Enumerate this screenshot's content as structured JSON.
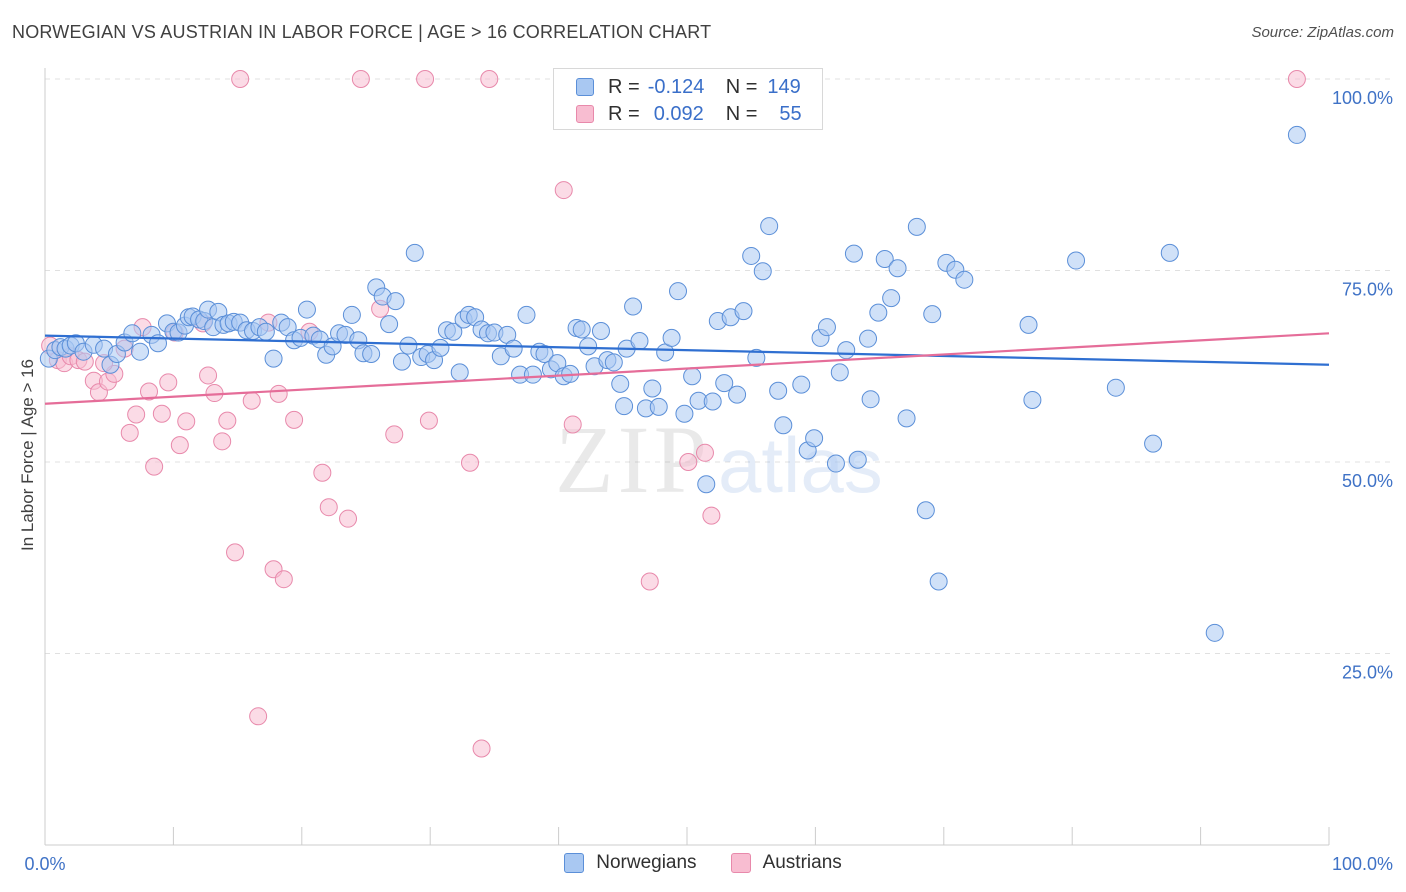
{
  "header": {
    "title": "NORWEGIAN VS AUSTRIAN IN LABOR FORCE | AGE > 16 CORRELATION CHART",
    "source": "Source: ZipAtlas.com"
  },
  "watermark": {
    "zip": "ZIP",
    "atlas": "atlas"
  },
  "legend_top": {
    "rows": [
      {
        "r_label": "R =",
        "r_value": "-0.124",
        "n_label": "N =",
        "n_value": "149"
      },
      {
        "r_label": "R =",
        "r_value": "0.092",
        "n_label": "N =",
        "n_value": "55"
      }
    ]
  },
  "colors": {
    "norwegian_fill": "#a9c8f2",
    "norwegian_stroke": "#5b8fd8",
    "norwegian_line": "#2f6fd1",
    "austrian_fill": "#f8bdd1",
    "austrian_stroke": "#e889ab",
    "austrian_line": "#e56d99",
    "tick_label": "#3f72c6",
    "grid": "#e0e0e0"
  },
  "chart_data": {
    "type": "scatter",
    "title": "NORWEGIAN VS AUSTRIAN IN LABOR FORCE | AGE > 16 CORRELATION CHART",
    "xlabel": "",
    "ylabel": "In Labor Force | Age > 16",
    "xlim": [
      0,
      100
    ],
    "ylim": [
      0,
      100
    ],
    "x_tick_labels": [
      "0.0%",
      "100.0%"
    ],
    "y_ticks": [
      25,
      50,
      75,
      100
    ],
    "y_tick_labels": [
      "25.0%",
      "50.0%",
      "75.0%",
      "100.0%"
    ],
    "grid": true,
    "legend_placement": "bottom",
    "series": [
      {
        "name": "Norwegians",
        "trend": {
          "x": [
            0,
            100
          ],
          "y": [
            66.5,
            62.7
          ]
        },
        "points": [
          [
            0.3,
            63.5
          ],
          [
            0.8,
            64.6
          ],
          [
            1.2,
            65
          ],
          [
            1.6,
            64.8
          ],
          [
            2,
            65.2
          ],
          [
            2.4,
            65.5
          ],
          [
            3,
            64.4
          ],
          [
            3.8,
            65.3
          ],
          [
            4.6,
            64.8
          ],
          [
            5.1,
            62.7
          ],
          [
            5.6,
            64.1
          ],
          [
            6.2,
            65.6
          ],
          [
            6.8,
            66.8
          ],
          [
            7.4,
            64.4
          ],
          [
            8.3,
            66.6
          ],
          [
            8.8,
            65.5
          ],
          [
            9.5,
            68.1
          ],
          [
            10,
            67
          ],
          [
            10.4,
            66.9
          ],
          [
            10.9,
            67.8
          ],
          [
            11.2,
            68.9
          ],
          [
            11.5,
            69
          ],
          [
            12,
            68.6
          ],
          [
            12.4,
            68.4
          ],
          [
            12.7,
            69.9
          ],
          [
            13.1,
            67.6
          ],
          [
            13.5,
            69.6
          ],
          [
            13.9,
            67.9
          ],
          [
            14.3,
            68.1
          ],
          [
            14.7,
            68.3
          ],
          [
            15.2,
            68.2
          ],
          [
            15.7,
            67.2
          ],
          [
            16.2,
            67.1
          ],
          [
            16.7,
            67.6
          ],
          [
            17.2,
            67
          ],
          [
            17.8,
            63.5
          ],
          [
            18.4,
            68.2
          ],
          [
            18.9,
            67.6
          ],
          [
            19.4,
            65.9
          ],
          [
            19.9,
            66.2
          ],
          [
            20.4,
            69.9
          ],
          [
            20.9,
            66.5
          ],
          [
            21.4,
            66
          ],
          [
            21.9,
            64
          ],
          [
            22.4,
            65.1
          ],
          [
            22.9,
            66.8
          ],
          [
            23.4,
            66.6
          ],
          [
            23.9,
            69.2
          ],
          [
            24.4,
            65.9
          ],
          [
            24.8,
            64.2
          ],
          [
            25.4,
            64.1
          ],
          [
            25.8,
            72.8
          ],
          [
            26.3,
            71.6
          ],
          [
            26.8,
            68
          ],
          [
            27.3,
            71
          ],
          [
            27.8,
            63.1
          ],
          [
            28.3,
            65.2
          ],
          [
            28.8,
            77.3
          ],
          [
            29.3,
            63.7
          ],
          [
            29.8,
            64.1
          ],
          [
            30.3,
            63.3
          ],
          [
            30.8,
            64.9
          ],
          [
            31.3,
            67.2
          ],
          [
            31.8,
            67
          ],
          [
            32.3,
            61.7
          ],
          [
            32.6,
            68.6
          ],
          [
            33,
            69.2
          ],
          [
            33.5,
            68.9
          ],
          [
            34,
            67.3
          ],
          [
            34.5,
            66.8
          ],
          [
            35,
            66.9
          ],
          [
            35.5,
            63.8
          ],
          [
            36,
            66.6
          ],
          [
            36.5,
            64.8
          ],
          [
            37,
            61.4
          ],
          [
            37.5,
            69.2
          ],
          [
            38,
            61.4
          ],
          [
            38.5,
            64.4
          ],
          [
            38.9,
            64.1
          ],
          [
            39.4,
            62.1
          ],
          [
            39.9,
            62.9
          ],
          [
            40.4,
            61.2
          ],
          [
            40.9,
            61.5
          ],
          [
            41.4,
            67.5
          ],
          [
            41.8,
            67.3
          ],
          [
            42.3,
            65.1
          ],
          [
            42.8,
            62.5
          ],
          [
            43.3,
            67.1
          ],
          [
            43.8,
            63.3
          ],
          [
            44.3,
            63
          ],
          [
            44.8,
            60.2
          ],
          [
            45.3,
            64.8
          ],
          [
            45.8,
            70.3
          ],
          [
            46.3,
            65.8
          ],
          [
            46.8,
            57
          ],
          [
            47.3,
            59.6
          ],
          [
            47.8,
            57.2
          ],
          [
            48.3,
            64.3
          ],
          [
            48.8,
            66.2
          ],
          [
            49.3,
            72.3
          ],
          [
            49.8,
            56.3
          ],
          [
            50.4,
            61.2
          ],
          [
            50.9,
            58
          ],
          [
            51.5,
            47.1
          ],
          [
            52,
            57.9
          ],
          [
            52.4,
            68.4
          ],
          [
            52.9,
            60.3
          ],
          [
            53.4,
            68.9
          ],
          [
            53.9,
            58.8
          ],
          [
            54.4,
            69.7
          ],
          [
            55,
            76.9
          ],
          [
            55.4,
            63.6
          ],
          [
            55.9,
            74.9
          ],
          [
            56.4,
            80.8
          ],
          [
            57.1,
            59.3
          ],
          [
            57.5,
            54.8
          ],
          [
            58.9,
            60.1
          ],
          [
            59.4,
            51.5
          ],
          [
            59.9,
            53.1
          ],
          [
            60.4,
            66.2
          ],
          [
            60.9,
            67.6
          ],
          [
            61.6,
            49.8
          ],
          [
            62.4,
            64.6
          ],
          [
            63,
            77.2
          ],
          [
            63.3,
            50.3
          ],
          [
            64.1,
            66.1
          ],
          [
            64.3,
            58.2
          ],
          [
            64.9,
            69.5
          ],
          [
            65.4,
            76.5
          ],
          [
            65.9,
            71.4
          ],
          [
            66.4,
            75.3
          ],
          [
            67.1,
            55.7
          ],
          [
            67.9,
            80.7
          ],
          [
            68.6,
            43.7
          ],
          [
            69.1,
            69.3
          ],
          [
            69.6,
            34.4
          ],
          [
            70.2,
            76
          ],
          [
            70.9,
            75.1
          ],
          [
            71.6,
            73.8
          ],
          [
            76.6,
            67.9
          ],
          [
            76.9,
            58.1
          ],
          [
            80.3,
            76.3
          ],
          [
            83.4,
            59.7
          ],
          [
            86.3,
            52.4
          ],
          [
            87.6,
            77.3
          ],
          [
            91.1,
            27.7
          ],
          [
            97.5,
            92.7
          ],
          [
            61.9,
            61.7
          ],
          [
            45.1,
            57.3
          ]
        ]
      },
      {
        "name": "Austrians",
        "trend": {
          "x": [
            0,
            100
          ],
          "y": [
            57.6,
            66.8
          ]
        },
        "points": [
          [
            0.4,
            65.2
          ],
          [
            1,
            63.3
          ],
          [
            1.5,
            62.9
          ],
          [
            2,
            63.8
          ],
          [
            2.6,
            63.3
          ],
          [
            3.1,
            63.1
          ],
          [
            3.8,
            60.6
          ],
          [
            4.2,
            59.1
          ],
          [
            4.9,
            60.5
          ],
          [
            5.4,
            61.5
          ],
          [
            6.2,
            64.8
          ],
          [
            6.6,
            53.8
          ],
          [
            7.1,
            56.2
          ],
          [
            7.6,
            67.6
          ],
          [
            8.1,
            59.2
          ],
          [
            8.5,
            49.4
          ],
          [
            9.1,
            56.3
          ],
          [
            9.6,
            60.4
          ],
          [
            10.1,
            66.9
          ],
          [
            10.5,
            52.2
          ],
          [
            11,
            55.3
          ],
          [
            12.3,
            68.1
          ],
          [
            12.7,
            61.3
          ],
          [
            13.2,
            59
          ],
          [
            13.8,
            52.7
          ],
          [
            14.2,
            55.4
          ],
          [
            14.8,
            38.2
          ],
          [
            15.2,
            100
          ],
          [
            16.1,
            58
          ],
          [
            16.6,
            16.8
          ],
          [
            17.4,
            68.2
          ],
          [
            17.8,
            36
          ],
          [
            18.2,
            58.9
          ],
          [
            18.6,
            34.7
          ],
          [
            20.6,
            67
          ],
          [
            21.6,
            48.6
          ],
          [
            22.1,
            44.1
          ],
          [
            23.6,
            42.6
          ],
          [
            24.6,
            100
          ],
          [
            26.1,
            70
          ],
          [
            27.2,
            53.6
          ],
          [
            29.6,
            100
          ],
          [
            29.9,
            55.4
          ],
          [
            33.1,
            49.9
          ],
          [
            34,
            12.6
          ],
          [
            34.6,
            100
          ],
          [
            40.4,
            85.5
          ],
          [
            41.1,
            54.9
          ],
          [
            47.1,
            34.4
          ],
          [
            50.1,
            50
          ],
          [
            51.4,
            51.2
          ],
          [
            51.9,
            43
          ],
          [
            97.5,
            100
          ],
          [
            4.6,
            62.9
          ],
          [
            19.4,
            55.5
          ]
        ]
      }
    ]
  },
  "legend_bottom": {
    "items": [
      {
        "label": "Norwegians"
      },
      {
        "label": "Austrians"
      }
    ]
  }
}
